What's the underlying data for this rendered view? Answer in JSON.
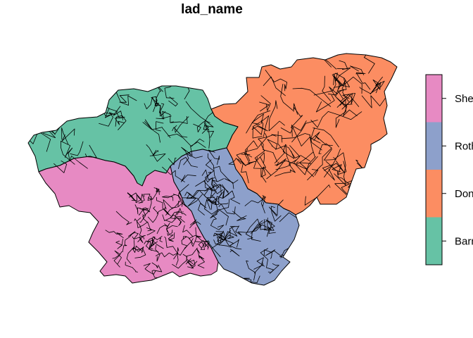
{
  "map": {
    "title": "lad_name",
    "regions": [
      {
        "name": "Barnsley",
        "color": "#66c2a5"
      },
      {
        "name": "Doncaster",
        "color": "#fc8d62"
      },
      {
        "name": "Rotherham",
        "color": "#8da0cb"
      },
      {
        "name": "Sheffield",
        "color": "#e78ac3"
      }
    ],
    "legend": {
      "placement": "right",
      "entries_top_to_bottom": [
        {
          "label": "Sheffield",
          "color": "#e78ac3"
        },
        {
          "label": "Rotherham",
          "color": "#8da0cb"
        },
        {
          "label": "Doncaster",
          "color": "#fc8d62"
        },
        {
          "label": "Barnsley",
          "color": "#66c2a5"
        }
      ]
    }
  }
}
